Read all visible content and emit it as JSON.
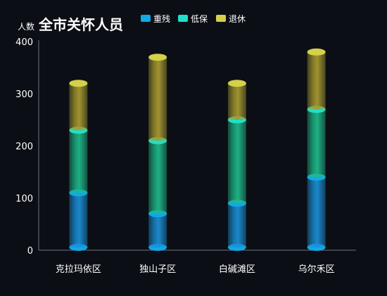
{
  "chart_data": {
    "type": "bar",
    "stacked": true,
    "style": "3d-cylinder",
    "title": "全市关怀人员",
    "ylabel": "人数",
    "ylim": [
      0,
      400
    ],
    "yticks": [
      0,
      100,
      200,
      300,
      400
    ],
    "categories": [
      "克拉玛依区",
      "独山子区",
      "白碱滩区",
      "乌尔禾区"
    ],
    "series": [
      {
        "name": "重残",
        "values": [
          110,
          70,
          90,
          140
        ],
        "color": "#1b8fd6",
        "top_color": "#11a8e8"
      },
      {
        "name": "低保",
        "values": [
          120,
          140,
          160,
          130
        ],
        "color": "#1fb98a",
        "top_color": "#20e0c8"
      },
      {
        "name": "退休",
        "values": [
          90,
          160,
          70,
          110
        ],
        "color": "#a89a30",
        "top_color": "#d4d04a"
      }
    ],
    "legend_position": "top",
    "grid": false
  }
}
